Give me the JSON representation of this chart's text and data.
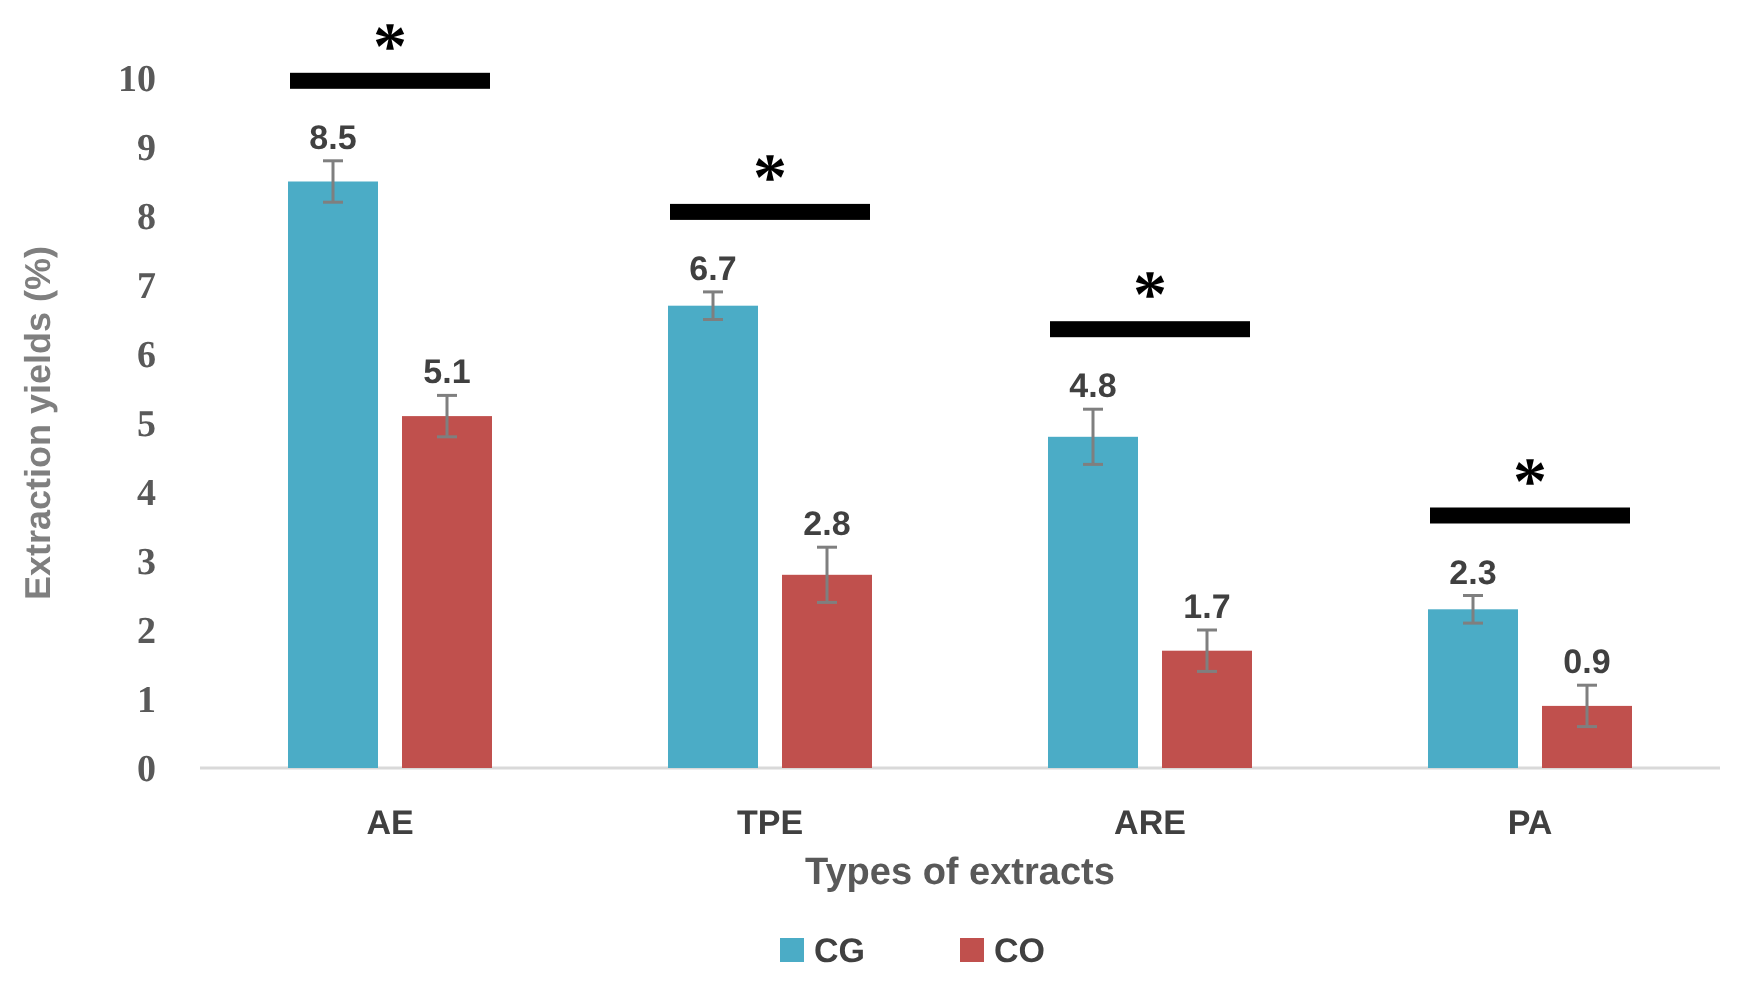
{
  "chart_data": {
    "type": "bar",
    "xlabel": "Types of extracts",
    "ylabel": "Extraction yields (%)",
    "categories": [
      "AE",
      "TPE",
      "ARE",
      "PA"
    ],
    "series": [
      {
        "name": "CG",
        "color": "#4bacc6",
        "values": [
          8.5,
          6.7,
          4.8,
          2.3
        ],
        "errors": [
          0.3,
          0.2,
          0.4,
          0.2
        ]
      },
      {
        "name": "CO",
        "color": "#c0504d",
        "values": [
          5.1,
          2.8,
          1.7,
          0.9
        ],
        "errors": [
          0.3,
          0.4,
          0.3,
          0.3
        ]
      }
    ],
    "ylim": [
      0,
      10
    ],
    "yticks": [
      0,
      1,
      2,
      3,
      4,
      5,
      6,
      7,
      8,
      9,
      10
    ],
    "data_labels": true,
    "legend": "bottom",
    "grid": false,
    "annotations": [
      "*",
      "*",
      "*",
      "*"
    ]
  }
}
